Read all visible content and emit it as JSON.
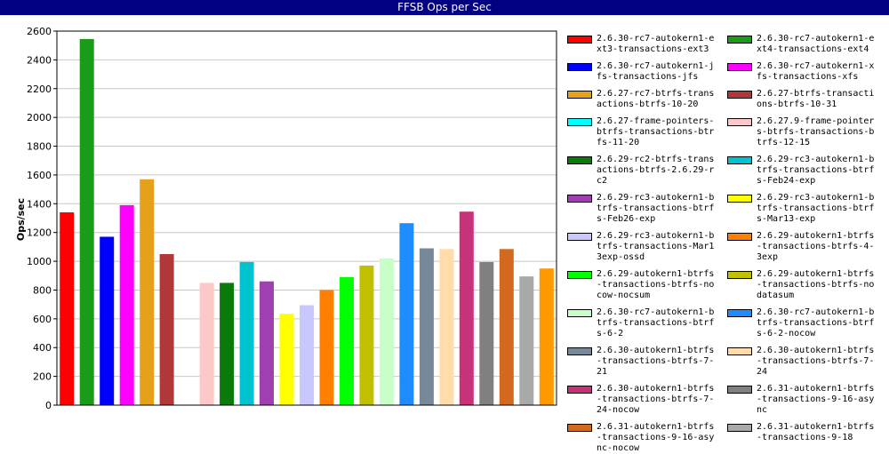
{
  "title": "FFSB Ops per Sec",
  "chart_data": {
    "type": "bar",
    "title": "FFSB Ops per Sec",
    "xlabel": "",
    "ylabel": "Ops/sec",
    "ylim": [
      0,
      2600
    ],
    "yticks": [
      0,
      200,
      400,
      600,
      800,
      1000,
      1200,
      1400,
      1600,
      1800,
      2000,
      2200,
      2400,
      2600
    ],
    "grid": true,
    "legend_position": "right",
    "series": [
      {
        "name": "2.6.30-rc7-autokern1-ext3-transactions-ext3",
        "value": 1340,
        "color": "#ff0000"
      },
      {
        "name": "2.6.30-rc7-autokern1-ext4-transactions-ext4",
        "value": 2545,
        "color": "#1a9c1a"
      },
      {
        "name": "2.6.30-rc7-autokern1-jfs-transactions-jfs",
        "value": 1170,
        "color": "#0000ff"
      },
      {
        "name": "2.6.30-rc7-autokern1-xfs-transactions-xfs",
        "value": 1390,
        "color": "#ff00ff"
      },
      {
        "name": "2.6.27-rc7-btrfs-transactions-btrfs-10-20",
        "value": 1570,
        "color": "#e6a11a"
      },
      {
        "name": "2.6.27-btrfs-transactions-btrfs-10-31",
        "value": 1050,
        "color": "#b03838"
      },
      {
        "name": "2.6.27-frame-pointers-btrfs-transactions-btrfs-11-20",
        "value": 0,
        "color": "#00ffff"
      },
      {
        "name": "2.6.27.9-frame-pointers-btrfs-transactions-btrfs-12-15",
        "value": 850,
        "color": "#ffc8c8"
      },
      {
        "name": "2.6.29-rc2-btrfs-transactions-btrfs-2.6.29-rc2",
        "value": 850,
        "color": "#0a7a0a"
      },
      {
        "name": "2.6.29-rc3-autokern1-btrfs-transactions-btrfs-Feb24-exp",
        "value": 995,
        "color": "#00c3d2"
      },
      {
        "name": "2.6.29-rc3-autokern1-btrfs-transactions-btrfs-Feb26-exp",
        "value": 860,
        "color": "#a040b0"
      },
      {
        "name": "2.6.29-rc3-autokern1-btrfs-transactions-btrfs-Mar13-exp",
        "value": 635,
        "color": "#ffff00"
      },
      {
        "name": "2.6.29-rc3-autokern1-btrfs-transactions-Mar13exp-ossd",
        "value": 695,
        "color": "#c8c8ff"
      },
      {
        "name": "2.6.29-autokern1-btrfs-transactions-btrfs-4-3exp",
        "value": 800,
        "color": "#ff7f00"
      },
      {
        "name": "2.6.29-autokern1-btrfs-transactions-btrfs-nocow-nocsum",
        "value": 890,
        "color": "#00ff00"
      },
      {
        "name": "2.6.29-autokern1-btrfs-transactions-btrfs-nodatasum",
        "value": 970,
        "color": "#c0c000"
      },
      {
        "name": "2.6.30-rc7-autokern1-btrfs-transactions-btrfs-6-2",
        "value": 1020,
        "color": "#c8ffc8"
      },
      {
        "name": "2.6.30-rc7-autokern1-btrfs-transactions-btrfs-6-2-nocow",
        "value": 1265,
        "color": "#1e8cff"
      },
      {
        "name": "2.6.30-autokern1-btrfs-transactions-btrfs-7-21",
        "value": 1090,
        "color": "#778899"
      },
      {
        "name": "2.6.30-autokern1-btrfs-transactions-btrfs-7-24",
        "value": 1085,
        "color": "#ffdcaa"
      },
      {
        "name": "2.6.30-autokern1-btrfs-transactions-btrfs-7-24-nocow",
        "value": 1345,
        "color": "#c83278"
      },
      {
        "name": "2.6.31-autokern1-btrfs-transactions-9-16-async",
        "value": 995,
        "color": "#808080"
      },
      {
        "name": "2.6.31-autokern1-btrfs-transactions-9-16-async-nocow",
        "value": 1085,
        "color": "#d2691e"
      },
      {
        "name": "2.6.31-autokern1-btrfs-transactions-9-18",
        "value": 895,
        "color": "#a9a9a9"
      },
      {
        "name": "",
        "value": 950,
        "color": "#ff9900"
      }
    ]
  },
  "legend_labels": [
    "2.6.30-rc7-autokern1-ext3-transactions-ext3",
    "2.6.30-rc7-autokern1-ext4-transactions-ext4",
    "2.6.30-rc7-autokern1-jfs-transactions-jfs",
    "2.6.30-rc7-autokern1-xfs-transactions-xfs",
    "2.6.27-rc7-btrfs-transactions-btrfs-10-20",
    "2.6.27-btrfs-transactions-btrfs-10-31",
    "2.6.27-frame-pointers-btrfs-transactions-btrfs-11-20",
    "2.6.27.9-frame-pointers-btrfs-transactions-btrfs-12-15",
    "2.6.29-rc2-btrfs-transactions-btrfs-2.6.29-rc2",
    "2.6.29-rc3-autokern1-btrfs-transactions-btrfs-Feb24-exp",
    "2.6.29-rc3-autokern1-btrfs-transactions-btrfs-Feb26-exp",
    "2.6.29-rc3-autokern1-btrfs-transactions-btrfs-Mar13-exp",
    "2.6.29-rc3-autokern1-btrfs-transactions-Mar13exp-ossd",
    "2.6.29-autokern1-btrfs-transactions-btrfs-4-3exp",
    "2.6.29-autokern1-btrfs-transactions-btrfs-nocow-nocsum",
    "2.6.29-autokern1-btrfs-transactions-btrfs-nodatasum",
    "2.6.30-rc7-autokern1-btrfs-transactions-btrfs-6-2",
    "2.6.30-rc7-autokern1-btrfs-transactions-btrfs-6-2-nocow",
    "2.6.30-autokern1-btrfs-transactions-btrfs-7-21",
    "2.6.30-autokern1-btrfs-transactions-btrfs-7-24",
    "2.6.30-autokern1-btrfs-transactions-btrfs-7-24-nocow",
    "2.6.31-autokern1-btrfs-transactions-9-16-async",
    "2.6.31-autokern1-btrfs-transactions-9-16-async-nocow",
    "2.6.31-autokern1-btrfs-transactions-9-18"
  ]
}
